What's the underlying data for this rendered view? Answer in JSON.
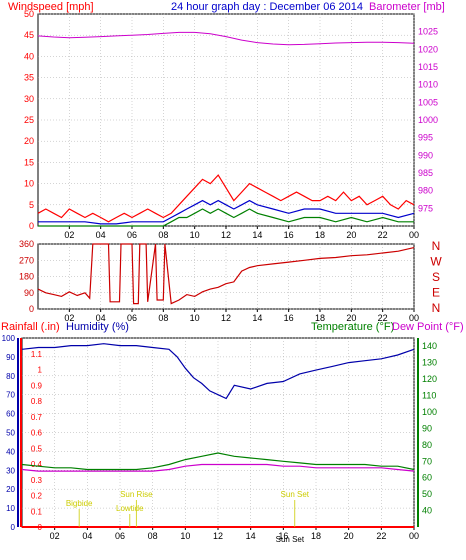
{
  "colors": {
    "background": "#ffffff",
    "frame": "#000000",
    "wind": "#ff0000",
    "wind_avg": "#0000cc",
    "wind_low": "#008000",
    "barometer": "#cc00cc",
    "direction": "#cc0000",
    "rainfall": "#ff0000",
    "humidity": "#0000aa",
    "temperature": "#008000",
    "dewpoint": "#cc00cc",
    "events": "#cccc00",
    "grid": "#aaaaaa"
  },
  "chart_data": [
    {
      "type": "line",
      "title": "24 hour graph day : December 06 2014",
      "left_axis_label": "Windspeed [mph]",
      "right_axis_label": "Barometer [mb]",
      "x_ticks": [
        "02",
        "04",
        "06",
        "08",
        "10",
        "12",
        "14",
        "16",
        "18",
        "20",
        "22",
        "00"
      ],
      "x_range_hours": [
        0,
        24
      ],
      "left_ylim": [
        0,
        50
      ],
      "left_ticks": [
        "0",
        "5",
        "10",
        "15",
        "20",
        "25",
        "30",
        "35",
        "40",
        "45",
        "50"
      ],
      "right_ylim": [
        970,
        1030
      ],
      "right_ticks": [
        "975",
        "980",
        "985",
        "990",
        "995",
        "1000",
        "1005",
        "1010",
        "1015",
        "1020",
        "1025"
      ],
      "grid": true,
      "series": [
        {
          "name": "Windspeed",
          "hours": [
            0,
            0.5,
            1,
            1.5,
            2,
            2.5,
            3,
            3.5,
            4,
            4.5,
            5,
            5.5,
            6,
            6.5,
            7,
            7.5,
            8,
            8.5,
            9,
            9.5,
            10,
            10.5,
            11,
            11.5,
            12,
            12.5,
            13,
            13.5,
            14,
            14.5,
            15,
            15.5,
            16,
            16.5,
            17,
            17.5,
            18,
            18.5,
            19,
            19.5,
            20,
            20.5,
            21,
            21.5,
            22,
            22.5,
            23,
            23.5,
            24
          ],
          "values": [
            3,
            4,
            3,
            2,
            4,
            3,
            2,
            3,
            2,
            1,
            2,
            3,
            2,
            3,
            4,
            3,
            2,
            3,
            5,
            7,
            9,
            11,
            10,
            12,
            9,
            6,
            8,
            10,
            9,
            8,
            7,
            6,
            7,
            8,
            7,
            6,
            6,
            7,
            6,
            8,
            6,
            7,
            5,
            6,
            7,
            5,
            4,
            6,
            5
          ]
        },
        {
          "name": "Average wind",
          "hours": [
            0,
            1,
            2,
            3,
            4,
            5,
            6,
            7,
            8,
            8.5,
            9,
            9.5,
            10,
            10.5,
            11,
            11.5,
            12,
            12.5,
            13,
            13.5,
            14,
            15,
            16,
            17,
            18,
            19,
            20,
            21,
            22,
            23,
            24
          ],
          "values": [
            1,
            1,
            1,
            1,
            0.5,
            0.5,
            1,
            1,
            1,
            2,
            3,
            4,
            5,
            6,
            5,
            6,
            5,
            4,
            5,
            6,
            5,
            4,
            3,
            4,
            4,
            3,
            3,
            3,
            3,
            2,
            3
          ]
        },
        {
          "name": "Lull",
          "hours": [
            0,
            2,
            4,
            6,
            8,
            8.5,
            9,
            9.5,
            10,
            10.5,
            11,
            11.5,
            12,
            12.5,
            13,
            13.5,
            14,
            15,
            16,
            17,
            18,
            19,
            20,
            21,
            22,
            23,
            24
          ],
          "values": [
            0,
            0,
            0,
            0,
            0,
            1,
            2,
            2,
            3,
            4,
            3,
            4,
            3,
            2,
            3,
            4,
            3,
            2,
            1,
            2,
            2,
            1,
            2,
            1,
            2,
            1,
            1
          ]
        },
        {
          "name": "Barometer",
          "hours": [
            0,
            1,
            2,
            3,
            4,
            5,
            6,
            7,
            8,
            9,
            10,
            11,
            12,
            13,
            14,
            15,
            16,
            17,
            18,
            19,
            20,
            21,
            22,
            23,
            24
          ],
          "values": [
            1023.8,
            1023.5,
            1023.3,
            1023.4,
            1023.6,
            1023.8,
            1024.0,
            1024.2,
            1024.5,
            1024.8,
            1024.8,
            1024.4,
            1023.6,
            1022.6,
            1021.9,
            1021.5,
            1021.3,
            1021.4,
            1021.6,
            1021.8,
            1021.9,
            1022.0,
            1022.0,
            1021.9,
            1021.7
          ]
        }
      ]
    },
    {
      "type": "line",
      "right_axis_label_letters": [
        "N",
        "W",
        "S",
        "E",
        "N"
      ],
      "x_ticks": [
        "02",
        "04",
        "06",
        "08",
        "10",
        "12",
        "14",
        "16",
        "18",
        "20",
        "22",
        "00"
      ],
      "ylim": [
        0,
        360
      ],
      "y_ticks": [
        "0",
        "90",
        "180",
        "270",
        "360"
      ],
      "series": [
        {
          "name": "Wind direction",
          "hours": [
            0,
            0.5,
            1,
            1.5,
            2,
            2.5,
            3,
            3.3,
            3.5,
            4.5,
            4.6,
            5.2,
            5.3,
            6.0,
            6.1,
            6.4,
            6.5,
            6.9,
            7.0,
            7.5,
            7.6,
            8.0,
            8.1,
            8.5,
            9,
            9.5,
            10,
            10.5,
            11,
            11.5,
            12,
            12.5,
            13,
            13.5,
            14,
            15,
            16,
            17,
            18,
            19,
            20,
            21,
            22,
            23,
            24
          ],
          "values": [
            110,
            90,
            80,
            70,
            95,
            75,
            90,
            60,
            360,
            360,
            40,
            40,
            360,
            360,
            30,
            30,
            360,
            360,
            40,
            360,
            50,
            50,
            360,
            30,
            50,
            80,
            70,
            95,
            110,
            120,
            140,
            150,
            210,
            230,
            240,
            250,
            260,
            270,
            280,
            285,
            295,
            300,
            310,
            320,
            340
          ]
        }
      ]
    },
    {
      "type": "line",
      "left_axis_label_1": "Rainfall (.in)",
      "left_axis_label_2": "Humidity (%)",
      "right_axis_label_1": "Temperature (°F)",
      "right_axis_label_2": "Dew Point (°F)",
      "x_ticks": [
        "02",
        "04",
        "06",
        "08",
        "10",
        "12",
        "14",
        "16",
        "18",
        "20",
        "22",
        "00"
      ],
      "humidity_ylim": [
        0,
        100
      ],
      "humidity_ticks": [
        "0",
        "10",
        "20",
        "30",
        "40",
        "50",
        "60",
        "70",
        "80",
        "90",
        "100"
      ],
      "rain_ylim": [
        0,
        1.2
      ],
      "rain_ticks": [
        "0",
        "0.1",
        "0.2",
        "0.3",
        "0.4",
        "0.5",
        "0.6",
        "0.7",
        "0.8",
        "0.9",
        "1",
        "1.1"
      ],
      "temp_ylim": [
        30,
        145
      ],
      "temp_ticks": [
        "40",
        "50",
        "60",
        "70",
        "80",
        "90",
        "100",
        "110",
        "120",
        "130",
        "140"
      ],
      "events": [
        {
          "label": "Bigbide",
          "hour": 3.5,
          "row": 1
        },
        {
          "label": "Sun Rise",
          "hour": 7.0,
          "row": 0
        },
        {
          "label": "Lowtide",
          "hour": 6.6,
          "row": 2
        },
        {
          "label": "Sun Set",
          "hour": 16.7,
          "row": 0
        },
        {
          "label": "Sun Set",
          "hour": 16.4,
          "row": 3
        }
      ],
      "series": [
        {
          "name": "Humidity",
          "hours": [
            0,
            1,
            2,
            3,
            4,
            5,
            6,
            7,
            8,
            9,
            9.5,
            10,
            10.5,
            11,
            11.5,
            12,
            12.5,
            13,
            14,
            15,
            16,
            17,
            18,
            19,
            20,
            21,
            22,
            23,
            24
          ],
          "values": [
            94,
            95,
            95,
            96,
            96,
            97,
            96,
            96,
            95,
            94,
            90,
            84,
            79,
            76,
            72,
            70,
            68,
            75,
            73,
            76,
            77,
            81,
            83,
            85,
            87,
            88,
            89,
            91,
            94
          ]
        },
        {
          "name": "Temperature",
          "hours": [
            0,
            1,
            2,
            3,
            4,
            5,
            6,
            7,
            8,
            9,
            10,
            11,
            12,
            12.5,
            13,
            14,
            15,
            16,
            17,
            18,
            19,
            20,
            21,
            22,
            23,
            24
          ],
          "values": [
            68,
            67,
            66,
            66,
            65,
            65,
            65,
            65,
            66,
            68,
            71,
            73,
            75,
            74,
            73,
            72,
            71,
            70,
            69,
            68,
            68,
            68,
            68,
            67,
            67,
            65
          ]
        },
        {
          "name": "Dew Point",
          "hours": [
            0,
            1,
            2,
            3,
            4,
            5,
            6,
            7,
            8,
            9,
            10,
            11,
            12,
            13,
            14,
            15,
            16,
            17,
            18,
            19,
            20,
            21,
            22,
            23,
            24
          ],
          "values": [
            65,
            64,
            64,
            64,
            64,
            64,
            64,
            64,
            64,
            65,
            67,
            68,
            68,
            68,
            68,
            68,
            67,
            67,
            66,
            66,
            66,
            66,
            66,
            65,
            64
          ]
        },
        {
          "name": "Rainfall",
          "hours": [
            0,
            24
          ],
          "values": [
            0,
            0
          ]
        }
      ]
    }
  ]
}
